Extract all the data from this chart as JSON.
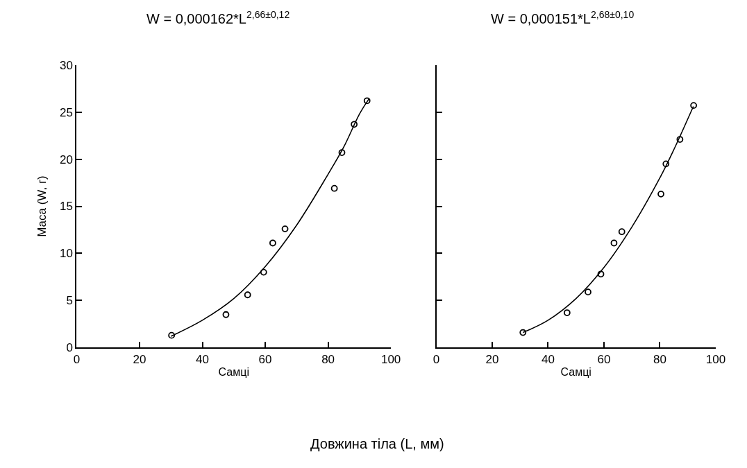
{
  "chart_data": [
    {
      "type": "scatter",
      "title": "W = 0,000162*L$^{2,66±0,12}$",
      "xlabel": "Самці",
      "ylabel": "Маса (W, г)",
      "xlim": [
        0,
        100
      ],
      "xticks": [
        0,
        20,
        40,
        60,
        80,
        100
      ],
      "ylim": [
        0,
        30
      ],
      "yticks": [
        0,
        5,
        10,
        15,
        20,
        25,
        30
      ],
      "annotations": [
        "Довжина тіла (L, мм)"
      ],
      "series": [
        {
          "marker": "circle",
          "color": "#000000",
          "x": [
            30.2,
            47.5,
            54.4,
            59.5,
            62.4,
            66.3,
            82.0,
            84.4,
            88.3,
            92.4
          ],
          "values": [
            1.3,
            3.5,
            5.6,
            8.0,
            11.1,
            12.6,
            16.9,
            20.7,
            23.7,
            26.2
          ]
        },
        {
          "type": "line",
          "color": "#000000",
          "x": [
            30,
            40,
            50,
            60,
            70,
            80,
            85,
            90,
            93
          ],
          "values": [
            1.2,
            2.9,
            5.2,
            8.6,
            13.0,
            18.4,
            21.3,
            24.8,
            26.4
          ]
        }
      ]
    },
    {
      "type": "scatter",
      "title": "W = 0,000151*L$^{2,68±0,10}$",
      "xlabel": "Самці",
      "tick_labels": "x",
      "xlim": [
        0,
        100
      ],
      "xticks": [
        0,
        20,
        40,
        60,
        80,
        100
      ],
      "ylim": [
        0,
        30
      ],
      "yticks": [
        0,
        5,
        10,
        15,
        20,
        25,
        30
      ],
      "series": [
        {
          "marker": "circle",
          "color": "#000000",
          "x": [
            31.0,
            46.8,
            54.3,
            58.9,
            63.6,
            66.4,
            80.4,
            82.2,
            87.2,
            92.1
          ],
          "values": [
            1.6,
            3.7,
            5.9,
            7.8,
            11.1,
            12.3,
            16.3,
            19.5,
            22.1,
            25.7
          ]
        },
        {
          "type": "line",
          "color": "#000000",
          "x": [
            31,
            40,
            50,
            60,
            70,
            80,
            85,
            92
          ],
          "values": [
            1.6,
            2.9,
            5.2,
            8.5,
            12.8,
            18.0,
            21.0,
            25.6
          ]
        }
      ]
    }
  ]
}
